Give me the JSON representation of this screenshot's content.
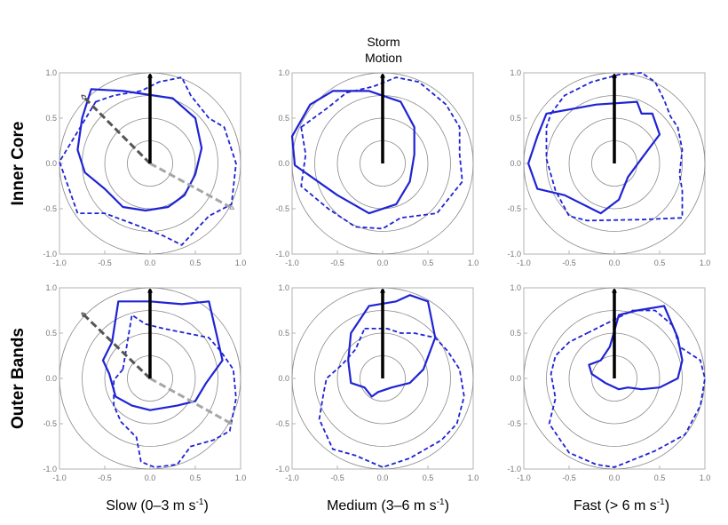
{
  "chart_data": {
    "type": "polar-contour",
    "description_label": "Storm Motion",
    "row_labels": [
      "Inner Core",
      "Outer Bands"
    ],
    "column_labels": [
      {
        "text": "Slow (0–3 m s",
        "sup": "-1",
        "close": ")"
      },
      {
        "text": "Medium (3–6 m s",
        "sup": "-1",
        "close": ")"
      },
      {
        "text": "Fast (> 6 m s",
        "sup": "-1",
        "close": ")"
      }
    ],
    "axes": {
      "xlim": [
        -1.0,
        1.0
      ],
      "ylim": [
        -1.0,
        1.0
      ],
      "xticks": [
        "-1.0",
        "-0.5",
        "0.0",
        "0.5",
        "1.0"
      ],
      "yticks": [
        "1.0",
        "0.5",
        "0.0",
        "-0.5",
        "-1.0"
      ],
      "ring_radii": [
        0.25,
        0.5,
        0.75,
        1.0
      ]
    },
    "colors": {
      "contour": "#1f23d4",
      "ring": "#8a8a8a",
      "frame": "#b3b3b3",
      "arrow": "#000000",
      "dark_arrow": "#555555",
      "light_arrow": "#a6a6a6"
    },
    "panels": [
      {
        "row": "Inner Core",
        "column": "Slow",
        "solid": [
          [
            -0.65,
            0.82
          ],
          [
            -0.3,
            0.8
          ],
          [
            0.25,
            0.72
          ],
          [
            0.5,
            0.5
          ],
          [
            0.57,
            0.17
          ],
          [
            0.5,
            -0.12
          ],
          [
            0.38,
            -0.35
          ],
          [
            0.2,
            -0.48
          ],
          [
            -0.05,
            -0.52
          ],
          [
            -0.3,
            -0.48
          ],
          [
            -0.5,
            -0.28
          ],
          [
            -0.72,
            -0.1
          ],
          [
            -0.8,
            0.15
          ],
          [
            -0.75,
            0.5
          ]
        ],
        "dashed": [
          [
            -0.6,
            0.68
          ],
          [
            -0.4,
            0.75
          ],
          [
            -0.1,
            0.8
          ],
          [
            0.1,
            0.9
          ],
          [
            0.35,
            0.95
          ],
          [
            0.45,
            0.75
          ],
          [
            0.65,
            0.5
          ],
          [
            0.82,
            0.4
          ],
          [
            0.95,
            0.0
          ],
          [
            0.9,
            -0.45
          ],
          [
            0.65,
            -0.58
          ],
          [
            0.35,
            -0.9
          ],
          [
            0.15,
            -0.8
          ],
          [
            -0.15,
            -0.68
          ],
          [
            -0.5,
            -0.55
          ],
          [
            -0.8,
            -0.55
          ],
          [
            -1.0,
            0.02
          ],
          [
            -0.8,
            0.35
          ]
        ],
        "extra_arrows": [
          {
            "to": [
              -0.75,
              0.75
            ],
            "color": "dark_arrow"
          },
          {
            "to": [
              0.92,
              -0.5
            ],
            "color": "light_arrow"
          }
        ]
      },
      {
        "row": "Inner Core",
        "column": "Medium",
        "solid": [
          [
            -0.8,
            0.65
          ],
          [
            -0.55,
            0.8
          ],
          [
            -0.15,
            0.8
          ],
          [
            0.2,
            0.68
          ],
          [
            0.35,
            0.4
          ],
          [
            0.35,
            0.1
          ],
          [
            0.3,
            -0.2
          ],
          [
            0.15,
            -0.45
          ],
          [
            -0.15,
            -0.55
          ],
          [
            -0.5,
            -0.35
          ],
          [
            -0.97,
            -0.02
          ],
          [
            -1.0,
            0.3
          ]
        ],
        "dashed": [
          [
            -0.9,
            0.4
          ],
          [
            -0.6,
            0.62
          ],
          [
            -0.4,
            0.78
          ],
          [
            -0.1,
            0.85
          ],
          [
            0.15,
            0.95
          ],
          [
            0.4,
            0.9
          ],
          [
            0.7,
            0.65
          ],
          [
            0.85,
            0.4
          ],
          [
            0.85,
            0.1
          ],
          [
            0.88,
            -0.2
          ],
          [
            0.6,
            -0.55
          ],
          [
            0.2,
            -0.6
          ],
          [
            0.0,
            -0.72
          ],
          [
            -0.3,
            -0.7
          ],
          [
            -0.6,
            -0.5
          ],
          [
            -0.9,
            -0.25
          ],
          [
            -0.85,
            0.1
          ]
        ]
      },
      {
        "row": "Inner Core",
        "column": "Fast",
        "solid": [
          [
            -0.75,
            0.55
          ],
          [
            -0.2,
            0.65
          ],
          [
            0.25,
            0.68
          ],
          [
            0.3,
            0.55
          ],
          [
            0.42,
            0.55
          ],
          [
            0.5,
            0.32
          ],
          [
            0.32,
            0.08
          ],
          [
            0.15,
            -0.15
          ],
          [
            0.05,
            -0.4
          ],
          [
            -0.15,
            -0.55
          ],
          [
            -0.55,
            -0.35
          ],
          [
            -0.85,
            -0.28
          ],
          [
            -0.95,
            0.0
          ],
          [
            -0.85,
            0.3
          ]
        ],
        "dashed": [
          [
            -0.7,
            0.55
          ],
          [
            -0.55,
            0.75
          ],
          [
            -0.25,
            0.9
          ],
          [
            0.05,
            0.98
          ],
          [
            0.3,
            1.0
          ],
          [
            0.45,
            0.9
          ],
          [
            0.55,
            0.7
          ],
          [
            0.62,
            0.52
          ],
          [
            0.7,
            0.4
          ],
          [
            0.75,
            0.15
          ],
          [
            0.72,
            -0.12
          ],
          [
            0.75,
            -0.3
          ],
          [
            0.75,
            -0.6
          ],
          [
            0.3,
            -0.62
          ],
          [
            -0.3,
            -0.63
          ],
          [
            -0.5,
            -0.58
          ],
          [
            -0.65,
            -0.3
          ],
          [
            -0.75,
            0.05
          ],
          [
            -0.75,
            0.4
          ]
        ]
      },
      {
        "row": "Outer Bands",
        "column": "Slow",
        "solid": [
          [
            -0.35,
            0.85
          ],
          [
            0.0,
            0.85
          ],
          [
            0.35,
            0.82
          ],
          [
            0.65,
            0.85
          ],
          [
            0.72,
            0.55
          ],
          [
            0.8,
            0.2
          ],
          [
            0.62,
            -0.05
          ],
          [
            0.5,
            -0.25
          ],
          [
            0.3,
            -0.3
          ],
          [
            0.0,
            -0.35
          ],
          [
            -0.2,
            -0.3
          ],
          [
            -0.38,
            -0.2
          ],
          [
            -0.45,
            0.05
          ],
          [
            -0.52,
            0.2
          ],
          [
            -0.42,
            0.4
          ]
        ],
        "dashed": [
          [
            -0.3,
            0.1
          ],
          [
            -0.25,
            0.4
          ],
          [
            -0.2,
            0.7
          ],
          [
            -0.05,
            0.6
          ],
          [
            0.15,
            0.55
          ],
          [
            0.4,
            0.5
          ],
          [
            0.65,
            0.45
          ],
          [
            0.78,
            0.3
          ],
          [
            0.92,
            0.1
          ],
          [
            0.95,
            -0.22
          ],
          [
            0.88,
            -0.58
          ],
          [
            0.7,
            -0.68
          ],
          [
            0.45,
            -0.75
          ],
          [
            0.3,
            -0.95
          ],
          [
            0.05,
            -0.98
          ],
          [
            -0.1,
            -0.92
          ],
          [
            -0.15,
            -0.65
          ],
          [
            -0.32,
            -0.48
          ],
          [
            -0.4,
            -0.3
          ],
          [
            -0.4,
            -0.02
          ]
        ],
        "extra_arrows": [
          {
            "to": [
              -0.75,
              0.72
            ],
            "color": "dark_arrow"
          },
          {
            "to": [
              0.9,
              -0.5
            ],
            "color": "light_arrow"
          }
        ]
      },
      {
        "row": "Outer Bands",
        "column": "Medium",
        "solid": [
          [
            -0.35,
            0.5
          ],
          [
            -0.15,
            0.8
          ],
          [
            0.15,
            0.85
          ],
          [
            0.3,
            0.92
          ],
          [
            0.5,
            0.85
          ],
          [
            0.58,
            0.45
          ],
          [
            0.45,
            0.1
          ],
          [
            0.3,
            -0.05
          ],
          [
            0.1,
            -0.1
          ],
          [
            -0.05,
            -0.15
          ],
          [
            -0.12,
            -0.2
          ],
          [
            -0.2,
            -0.1
          ],
          [
            -0.35,
            -0.05
          ],
          [
            -0.38,
            0.2
          ]
        ],
        "dashed": [
          [
            -0.2,
            0.55
          ],
          [
            0.05,
            0.55
          ],
          [
            0.2,
            0.5
          ],
          [
            0.35,
            0.5
          ],
          [
            0.58,
            0.45
          ],
          [
            0.72,
            0.3
          ],
          [
            0.85,
            0.1
          ],
          [
            0.9,
            -0.2
          ],
          [
            0.82,
            -0.5
          ],
          [
            0.65,
            -0.68
          ],
          [
            0.3,
            -0.88
          ],
          [
            0.0,
            -0.98
          ],
          [
            -0.3,
            -0.85
          ],
          [
            -0.55,
            -0.78
          ],
          [
            -0.7,
            -0.45
          ],
          [
            -0.65,
            -0.15
          ],
          [
            -0.62,
            0.0
          ],
          [
            -0.45,
            0.15
          ],
          [
            -0.3,
            0.32
          ]
        ]
      },
      {
        "row": "Outer Bands",
        "column": "Fast",
        "solid": [
          [
            -0.05,
            0.35
          ],
          [
            0.05,
            0.7
          ],
          [
            0.25,
            0.75
          ],
          [
            0.55,
            0.8
          ],
          [
            0.7,
            0.45
          ],
          [
            0.75,
            0.2
          ],
          [
            0.7,
            0.0
          ],
          [
            0.5,
            -0.1
          ],
          [
            0.3,
            -0.12
          ],
          [
            0.15,
            -0.1
          ],
          [
            0.05,
            -0.12
          ],
          [
            -0.1,
            -0.05
          ],
          [
            -0.25,
            0.05
          ],
          [
            -0.28,
            0.15
          ],
          [
            -0.15,
            0.2
          ]
        ],
        "dashed": [
          [
            -0.3,
            0.5
          ],
          [
            -0.1,
            0.6
          ],
          [
            0.2,
            0.75
          ],
          [
            0.45,
            0.75
          ],
          [
            0.65,
            0.58
          ],
          [
            0.72,
            0.35
          ],
          [
            0.95,
            0.2
          ],
          [
            1.0,
            0.0
          ],
          [
            0.95,
            -0.3
          ],
          [
            0.78,
            -0.62
          ],
          [
            0.45,
            -0.8
          ],
          [
            0.0,
            -0.98
          ],
          [
            -0.2,
            -0.95
          ],
          [
            -0.5,
            -0.82
          ],
          [
            -0.72,
            -0.5
          ],
          [
            -0.65,
            -0.22
          ],
          [
            -0.7,
            0.05
          ],
          [
            -0.65,
            0.25
          ],
          [
            -0.5,
            0.4
          ]
        ]
      }
    ]
  }
}
